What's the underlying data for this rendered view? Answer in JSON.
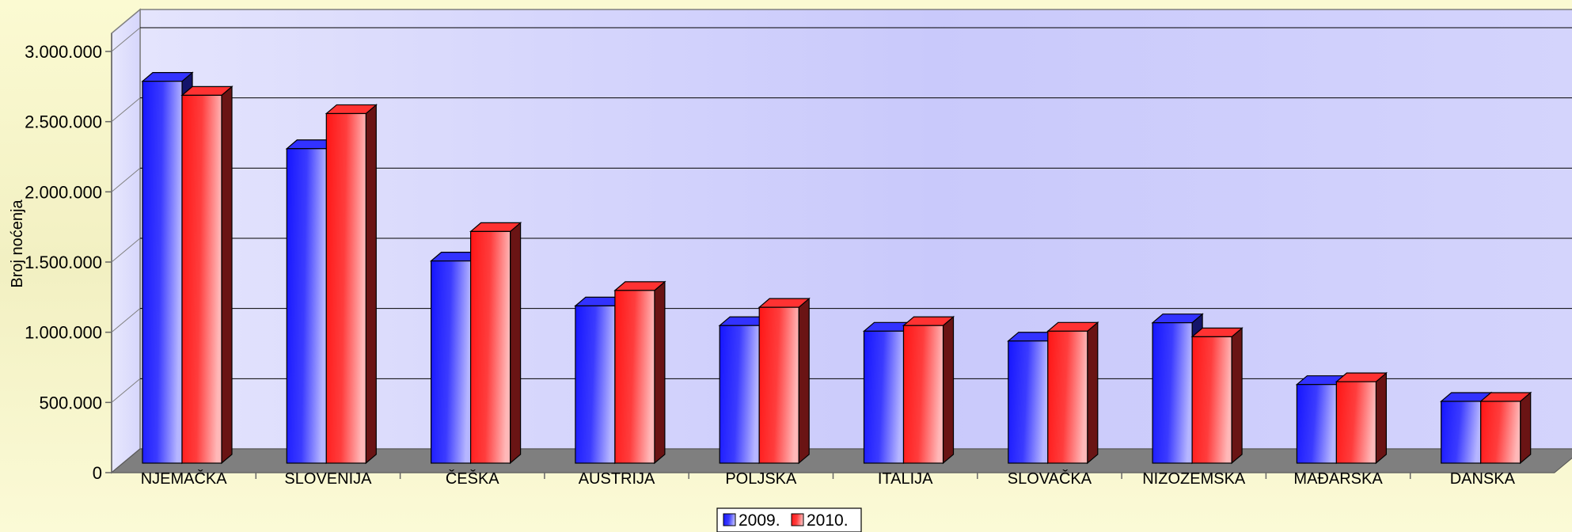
{
  "chart_data": {
    "type": "bar",
    "title": "",
    "xlabel": "",
    "ylabel": "Broj noćenja",
    "ylim": [
      0,
      3000000
    ],
    "yticks": [
      "0",
      "500.000",
      "1.000.000",
      "1.500.000",
      "2.000.000",
      "2.500.000",
      "3.000.000"
    ],
    "categories": [
      "NJEMAČKA",
      "SLOVENIJA",
      "ČEŠKA",
      "AUSTRIJA",
      "POLJSKA",
      "ITALIJA",
      "SLOVAČKA",
      "NIZOZEMSKA",
      "MAĐARSKA",
      "DANSKA"
    ],
    "series": [
      {
        "name": "2009.",
        "color": "#1e1eff",
        "values": [
          2720000,
          2240000,
          1440000,
          1120000,
          980000,
          940000,
          870000,
          1000000,
          560000,
          440000
        ]
      },
      {
        "name": "2010.",
        "color": "#ff1e1e",
        "values": [
          2620000,
          2490000,
          1650000,
          1230000,
          1110000,
          980000,
          940000,
          900000,
          580000,
          440000
        ]
      }
    ],
    "grid": true,
    "legend": "bottom",
    "colors": {
      "background": "#f0eebe",
      "wall": "#cdcdfc",
      "floor": "#7f7f7f"
    }
  }
}
